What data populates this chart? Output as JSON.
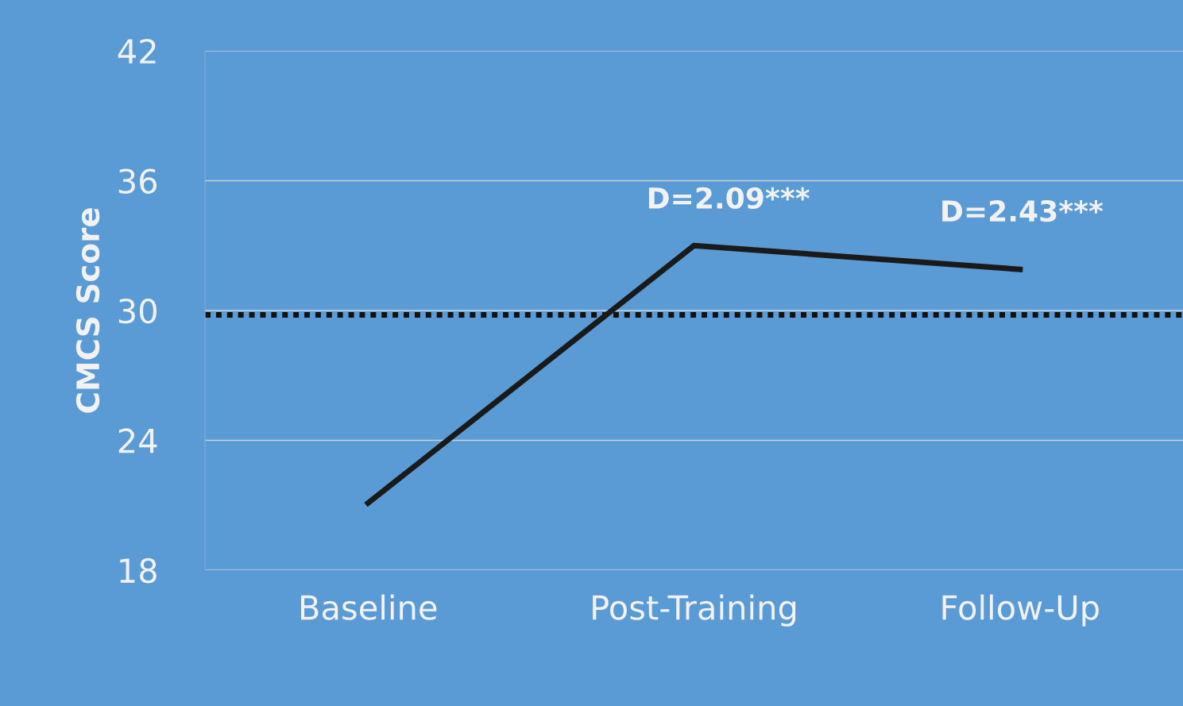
{
  "chart_data": {
    "type": "line",
    "ylabel": "CMCS Score",
    "categories": [
      "Baseline",
      "Post-Training",
      "Follow-Up"
    ],
    "series": [
      {
        "color": "#1a1a1a",
        "values": [
          21.1,
          33.0,
          31.9
        ]
      }
    ],
    "ylim": [
      18,
      42
    ],
    "yticks": [
      18,
      24,
      30,
      36,
      42
    ],
    "grid": "y",
    "marker": "none",
    "line_style": "solid",
    "ref_lines": [
      {
        "axis": "y",
        "value": 29.8,
        "color": "#111111",
        "line_style": "dotted"
      }
    ],
    "annotations": [
      "D=2.09***",
      "D=2.43***"
    ]
  }
}
